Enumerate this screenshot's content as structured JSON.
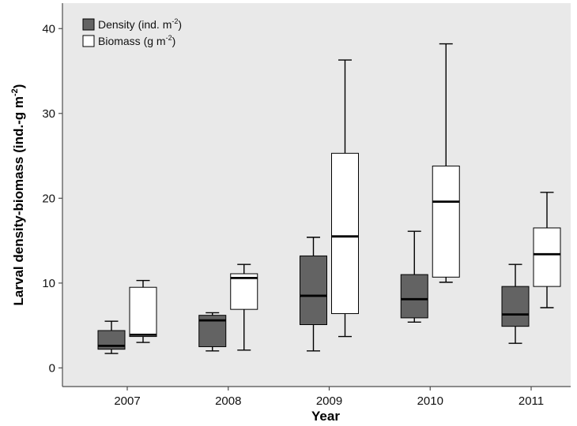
{
  "chart_data": {
    "type": "boxplot",
    "xlabel": "Year",
    "ylabel_main": "Larval density-biomass (ind.-g m",
    "ylabel_sup": "-2",
    "ylabel_end": ")",
    "categories": [
      "2007",
      "2008",
      "2009",
      "2010",
      "2011"
    ],
    "ylim": [
      -2.2,
      43
    ],
    "yticks": [
      0,
      10,
      20,
      30,
      40
    ],
    "ytick_labels": [
      "0",
      "10",
      "20",
      "30",
      "40"
    ],
    "grid": false,
    "legend_position": "top-left",
    "series": [
      {
        "name_main": "Density (ind. m",
        "name_sup": "-2",
        "name_end": ")",
        "color": "#636363",
        "boxes": [
          {
            "whisker_low": 1.7,
            "q1": 2.2,
            "median": 2.6,
            "q3": 4.4,
            "whisker_high": 5.5
          },
          {
            "whisker_low": 2.0,
            "q1": 2.5,
            "median": 5.6,
            "q3": 6.2,
            "whisker_high": 6.5
          },
          {
            "whisker_low": 2.0,
            "q1": 5.1,
            "median": 8.5,
            "q3": 13.2,
            "whisker_high": 15.4
          },
          {
            "whisker_low": 5.4,
            "q1": 5.9,
            "median": 8.1,
            "q3": 11.0,
            "whisker_high": 16.1
          },
          {
            "whisker_low": 2.9,
            "q1": 4.9,
            "median": 6.3,
            "q3": 9.6,
            "whisker_high": 12.2
          }
        ]
      },
      {
        "name_main": "Biomass (g m",
        "name_sup": "-2",
        "name_end": ")",
        "color": "#ffffff",
        "boxes": [
          {
            "whisker_low": 3.0,
            "q1": 3.7,
            "median": 3.9,
            "q3": 9.5,
            "whisker_high": 10.3
          },
          {
            "whisker_low": 2.1,
            "q1": 6.9,
            "median": 10.6,
            "q3": 11.1,
            "whisker_high": 12.2
          },
          {
            "whisker_low": 3.7,
            "q1": 6.4,
            "median": 15.5,
            "q3": 25.3,
            "whisker_high": 36.3
          },
          {
            "whisker_low": 10.1,
            "q1": 10.7,
            "median": 19.6,
            "q3": 23.8,
            "whisker_high": 38.2
          },
          {
            "whisker_low": 7.1,
            "q1": 9.6,
            "median": 13.4,
            "q3": 16.5,
            "whisker_high": 20.7
          }
        ]
      }
    ]
  },
  "colors": {
    "plot_background": "#e9e9e9",
    "box_outline": "#000000",
    "axis": "#4d4d4d"
  }
}
